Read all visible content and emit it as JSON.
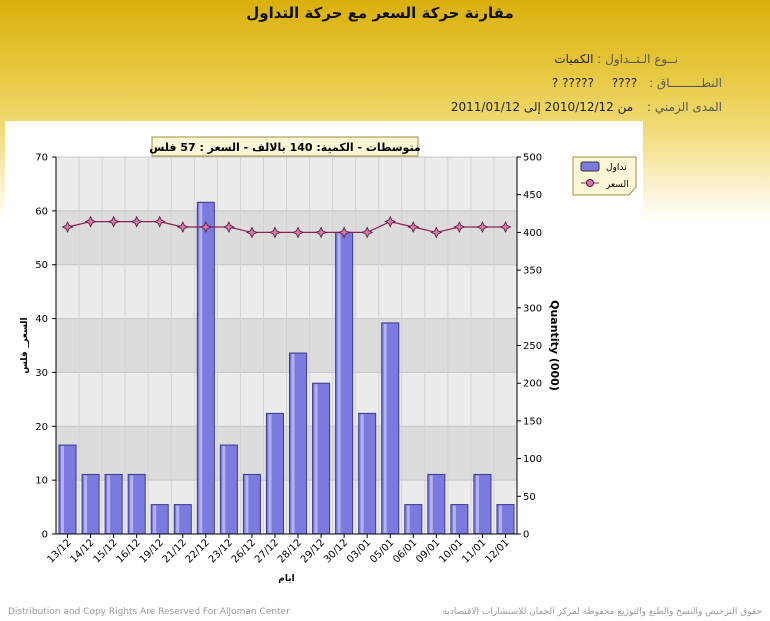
{
  "page": {
    "title": "مقارنة حركة السعر مع حركة التداول",
    "trade_type_label": "نــوع الـتــداول :",
    "trade_type_value": "الكميات",
    "scope_label": "النطـــــــــاق :",
    "scope_value1": "????",
    "scope_value2": "????? ?",
    "period_label": "المدى الزمني :",
    "period_value": "من 2010/12/12 إلى 2011/01/12",
    "footer_left": "Distribution and Copy Rights Are Reserved For AlJoman Center",
    "footer_right": "حقوق الترخيص والنسخ والطبع والتوزيع محفوظة لمركز الجمان للاستشارات الاقتصادية"
  },
  "chart_data": {
    "type": "bar",
    "annotation": "متوسطات - الكمية: 140 بالالف  - السعر : 57 فلس",
    "xlabel": "ايام",
    "ylabel_left": "السعر_ فلس",
    "ylabel_right": "Quantity (000)",
    "categories": [
      "13/12",
      "14/12",
      "15/12",
      "16/12",
      "19/12",
      "21/12",
      "22/12",
      "23/12",
      "26/12",
      "27/12",
      "28/12",
      "29/12",
      "30/12",
      "03/01",
      "05/01",
      "06/01",
      "09/01",
      "10/01",
      "11/01",
      "12/01"
    ],
    "left_ticks": [
      "0",
      "10",
      "20",
      "30",
      "40",
      "50",
      "60",
      "70"
    ],
    "right_ticks": [
      "0",
      "50",
      "100",
      "150",
      "200",
      "250",
      "300",
      "350",
      "400",
      "450",
      "500"
    ],
    "ylim_left": [
      0,
      70
    ],
    "ylim_right": [
      0,
      500
    ],
    "grid": true,
    "legend_position": "top-right",
    "series": [
      {
        "name": "تداول",
        "axis": "right",
        "style": "bar",
        "color": "#7b7bdf",
        "values": [
          118,
          79,
          79,
          79,
          39,
          39,
          440,
          118,
          79,
          160,
          240,
          200,
          400,
          160,
          280,
          39,
          79,
          39,
          79,
          39
        ]
      },
      {
        "name": "السعر",
        "axis": "left",
        "style": "line",
        "color": "#8b2252",
        "values": [
          57,
          58,
          58,
          58,
          58,
          57,
          57,
          57,
          56,
          56,
          56,
          56,
          56,
          56,
          58,
          57,
          56,
          57,
          57,
          57
        ]
      }
    ]
  }
}
